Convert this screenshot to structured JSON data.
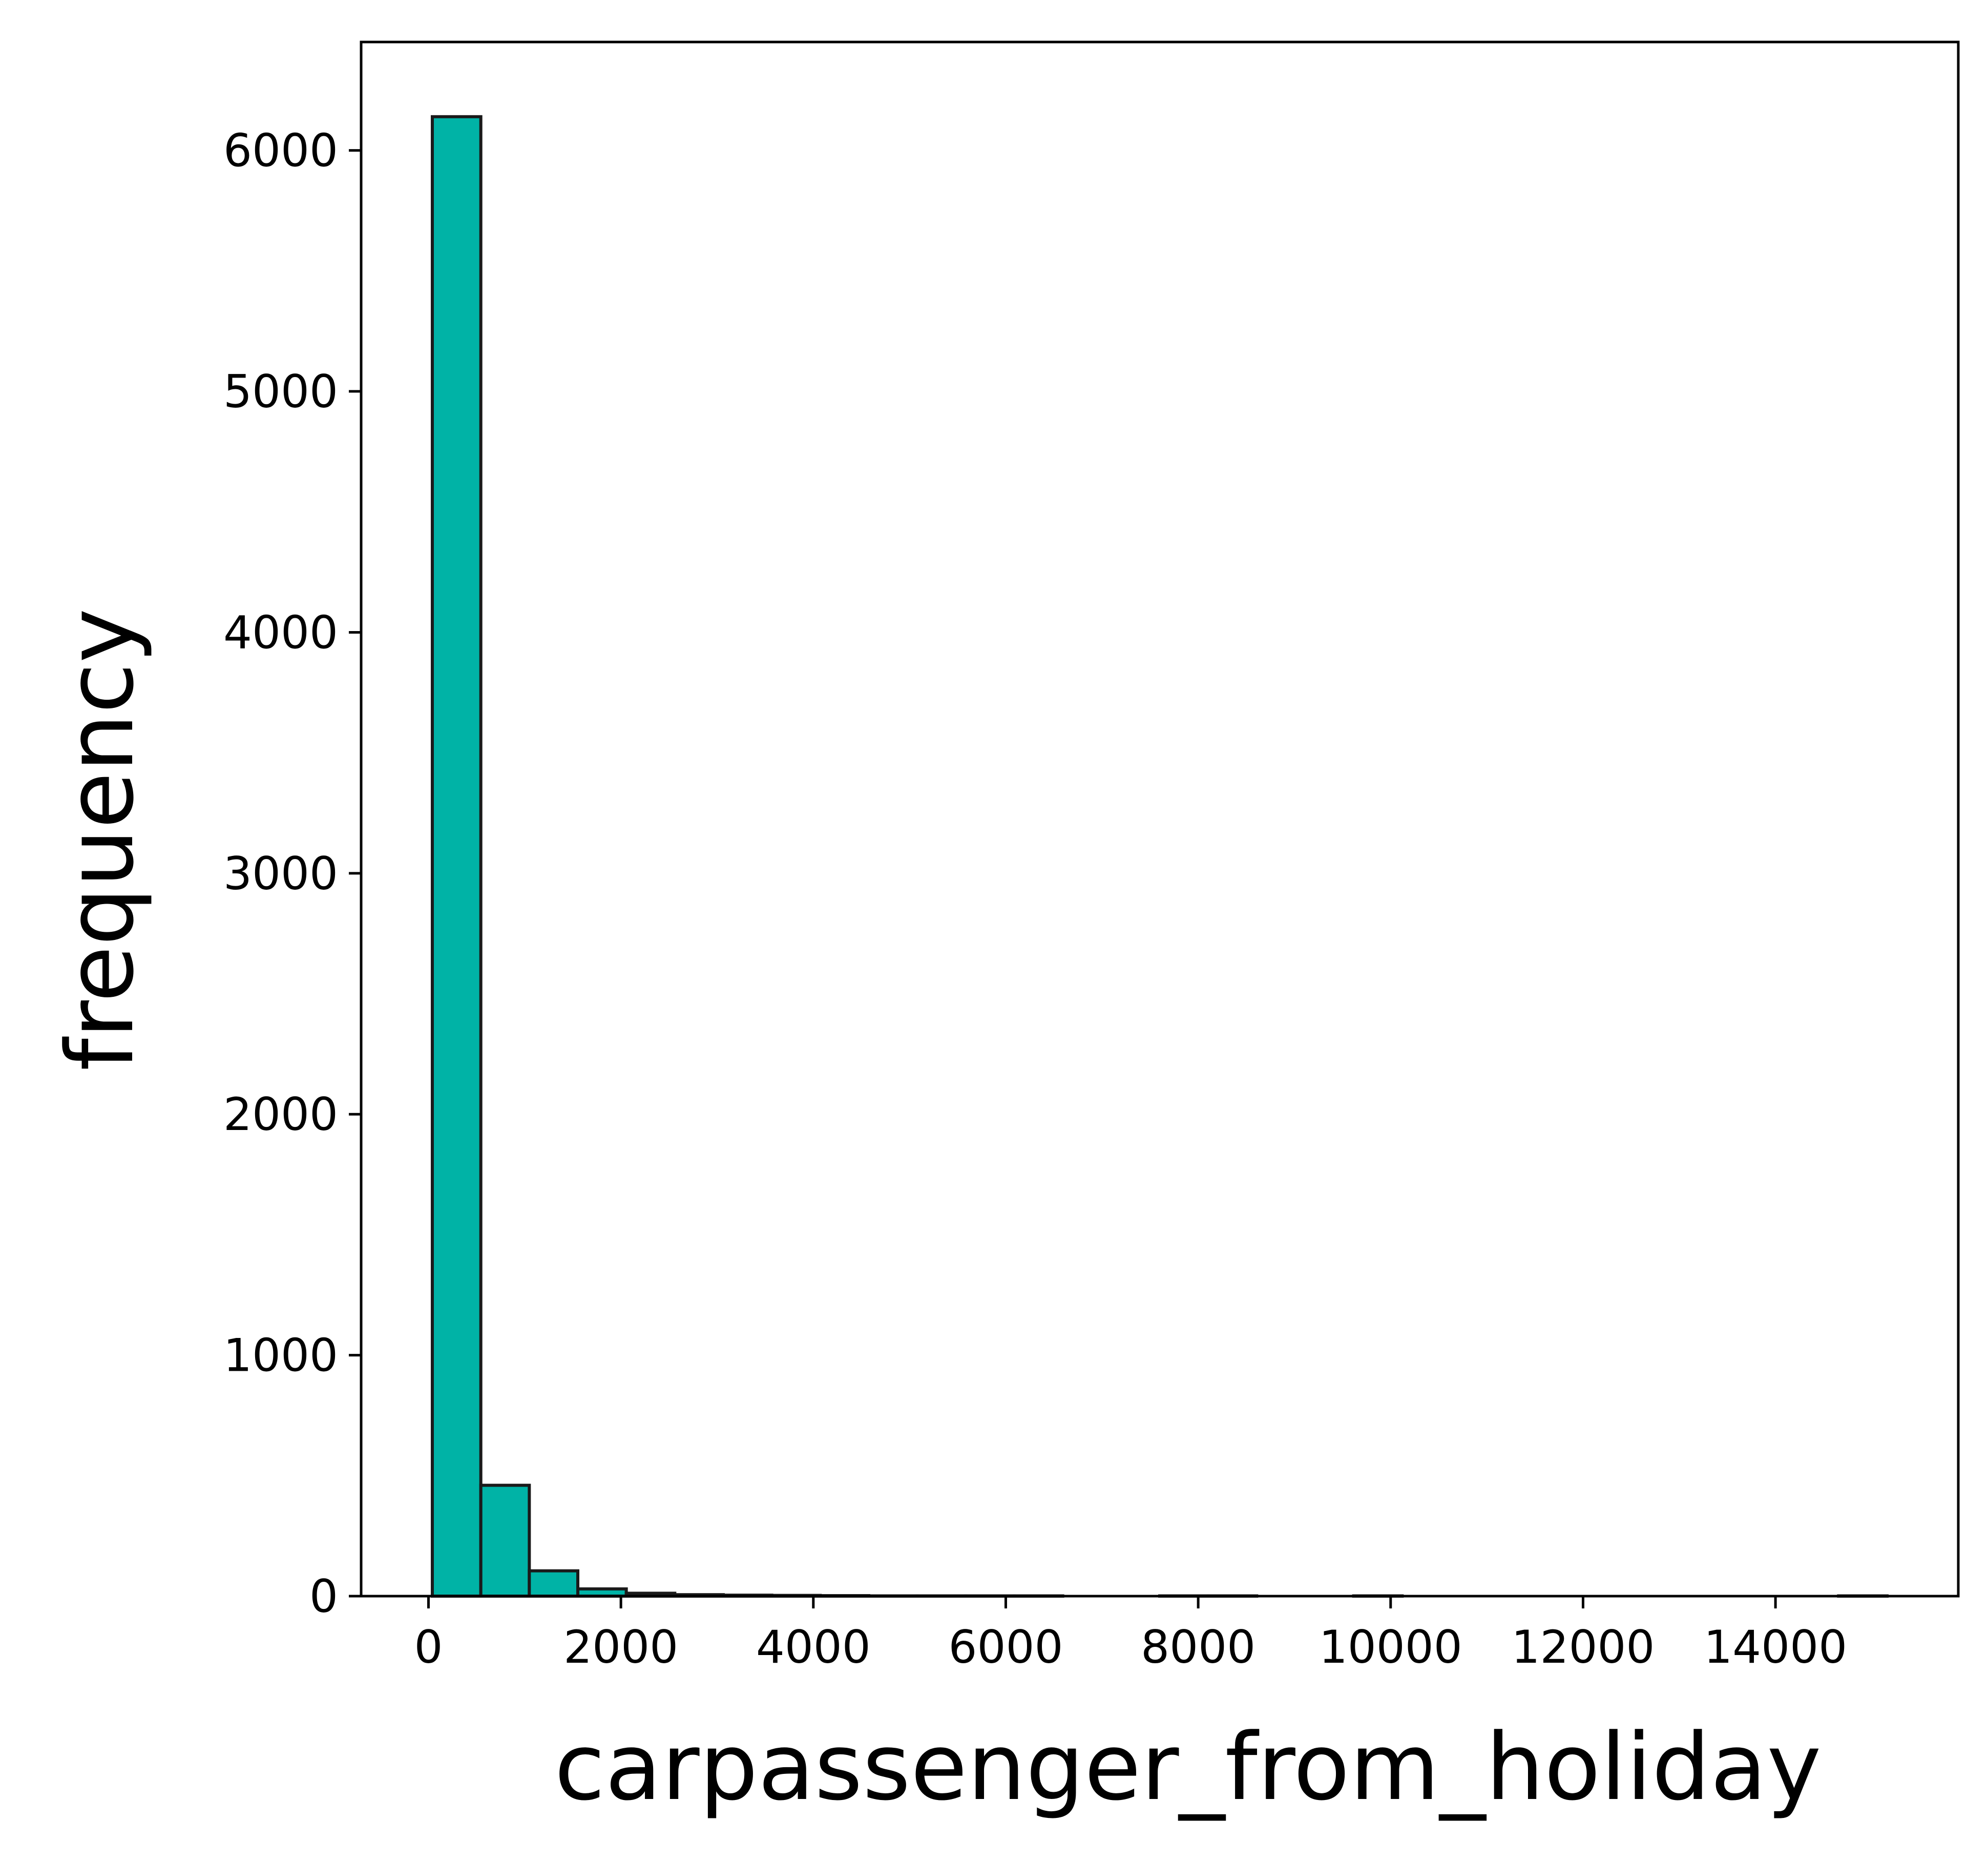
{
  "chart_data": {
    "type": "bar",
    "subtype": "histogram",
    "title": "",
    "xlabel": "carpassenger_from_holiday",
    "ylabel": "frequency",
    "bin_width": 504,
    "bins": [
      {
        "x0": 40,
        "x1": 544,
        "count": 6140
      },
      {
        "x0": 544,
        "x1": 1048,
        "count": 460
      },
      {
        "x0": 1048,
        "x1": 1552,
        "count": 105
      },
      {
        "x0": 1552,
        "x1": 2056,
        "count": 30
      },
      {
        "x0": 2056,
        "x1": 2560,
        "count": 12
      },
      {
        "x0": 2560,
        "x1": 3064,
        "count": 6
      },
      {
        "x0": 3064,
        "x1": 3568,
        "count": 4
      },
      {
        "x0": 3568,
        "x1": 4072,
        "count": 3
      },
      {
        "x0": 4072,
        "x1": 4576,
        "count": 2
      },
      {
        "x0": 4576,
        "x1": 5080,
        "count": 1
      },
      {
        "x0": 5080,
        "x1": 5584,
        "count": 1
      },
      {
        "x0": 5584,
        "x1": 6088,
        "count": 1
      },
      {
        "x0": 6088,
        "x1": 6592,
        "count": 1
      },
      {
        "x0": 6592,
        "x1": 7096,
        "count": 0
      },
      {
        "x0": 7096,
        "x1": 7600,
        "count": 0
      },
      {
        "x0": 7600,
        "x1": 8104,
        "count": 1
      },
      {
        "x0": 8104,
        "x1": 8608,
        "count": 1
      },
      {
        "x0": 8608,
        "x1": 9112,
        "count": 0
      },
      {
        "x0": 9112,
        "x1": 9616,
        "count": 0
      },
      {
        "x0": 9616,
        "x1": 10120,
        "count": 1
      },
      {
        "x0": 10120,
        "x1": 10624,
        "count": 0
      },
      {
        "x0": 10624,
        "x1": 11128,
        "count": 0
      },
      {
        "x0": 11128,
        "x1": 11632,
        "count": 0
      },
      {
        "x0": 11632,
        "x1": 12136,
        "count": 0
      },
      {
        "x0": 12136,
        "x1": 12640,
        "count": 0
      },
      {
        "x0": 12640,
        "x1": 13144,
        "count": 0
      },
      {
        "x0": 13144,
        "x1": 13648,
        "count": 0
      },
      {
        "x0": 13648,
        "x1": 14152,
        "count": 0
      },
      {
        "x0": 14152,
        "x1": 14656,
        "count": 0
      },
      {
        "x0": 14656,
        "x1": 15160,
        "count": 1
      }
    ],
    "xlim": [
      -700,
      15900
    ],
    "ylim": [
      0,
      6450
    ],
    "x_ticks": [
      0,
      2000,
      4000,
      6000,
      8000,
      10000,
      12000,
      14000
    ],
    "x_tick_labels": [
      "0",
      "2000",
      "4000",
      "6000",
      "8000",
      "10000",
      "12000",
      "14000"
    ],
    "y_ticks": [
      0,
      1000,
      2000,
      3000,
      4000,
      5000,
      6000
    ],
    "y_tick_labels": [
      "0",
      "1000",
      "2000",
      "3000",
      "4000",
      "5000",
      "6000"
    ],
    "bar_color": "#00b3a6",
    "edge_color": "#1a1a1a",
    "grid": false,
    "legend": "none"
  }
}
